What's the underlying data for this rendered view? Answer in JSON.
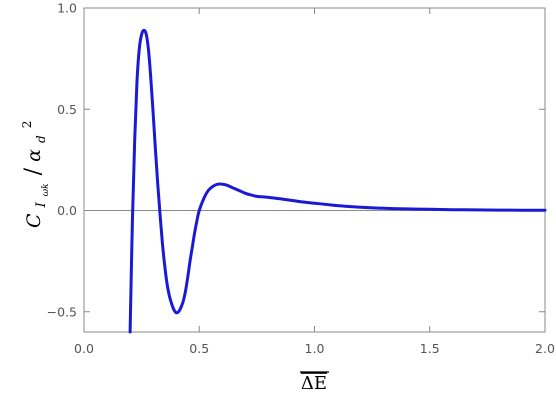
{
  "chart_data": {
    "type": "line",
    "title": "",
    "xlabel": "ΔE",
    "xlabel_overline": true,
    "ylabel": "C_{I_{ω_k}}/α_d^2",
    "ylabel_parts": {
      "main": "C",
      "sub": "I",
      "subsub": "ωk",
      "slash": "/",
      "alpha": "α",
      "alpha_sub": "d",
      "alpha_sup": "2"
    },
    "xlim": [
      0.0,
      2.0
    ],
    "ylim": [
      -0.6,
      1.0
    ],
    "x_ticks": [
      {
        "value": 0.0,
        "label": "0.0"
      },
      {
        "value": 0.5,
        "label": "0.5"
      },
      {
        "value": 1.0,
        "label": "1.0"
      },
      {
        "value": 1.5,
        "label": "1.5"
      },
      {
        "value": 2.0,
        "label": "2.0"
      }
    ],
    "y_ticks": [
      {
        "value": -0.5,
        "label": "−0.5"
      },
      {
        "value": 0.0,
        "label": "0.0"
      },
      {
        "value": 0.5,
        "label": "0.5"
      },
      {
        "value": 1.0,
        "label": "1.0"
      }
    ],
    "zero_line": true,
    "grid": false,
    "series_color": "#1a1ad6",
    "series": [
      {
        "x": [
          0.2,
          0.21,
          0.22,
          0.23,
          0.24,
          0.25,
          0.26,
          0.27,
          0.28,
          0.29,
          0.3,
          0.31,
          0.32,
          0.33,
          0.34,
          0.35,
          0.36,
          0.37,
          0.38,
          0.39,
          0.4,
          0.41,
          0.42,
          0.43,
          0.44,
          0.45,
          0.46,
          0.47,
          0.48,
          0.49,
          0.5,
          0.52,
          0.54,
          0.56,
          0.58,
          0.6,
          0.62,
          0.64,
          0.66,
          0.68,
          0.7,
          0.72,
          0.75,
          0.8,
          0.85,
          0.9,
          0.95,
          1.0,
          1.05,
          1.1,
          1.15,
          1.2,
          1.3,
          1.4,
          1.5,
          1.6,
          1.7,
          1.8,
          1.9,
          2.0
        ],
        "y": [
          -0.6,
          -0.05,
          0.35,
          0.64,
          0.8,
          0.87,
          0.89,
          0.87,
          0.79,
          0.65,
          0.48,
          0.3,
          0.13,
          -0.02,
          -0.16,
          -0.27,
          -0.36,
          -0.42,
          -0.46,
          -0.49,
          -0.505,
          -0.5,
          -0.48,
          -0.45,
          -0.4,
          -0.33,
          -0.25,
          -0.18,
          -0.11,
          -0.05,
          0.0,
          0.06,
          0.1,
          0.12,
          0.13,
          0.13,
          0.125,
          0.115,
          0.105,
          0.095,
          0.085,
          0.078,
          0.07,
          0.065,
          0.058,
          0.05,
          0.042,
          0.036,
          0.03,
          0.024,
          0.02,
          0.016,
          0.011,
          0.008,
          0.006,
          0.004,
          0.003,
          0.002,
          0.0015,
          0.001
        ]
      }
    ]
  }
}
